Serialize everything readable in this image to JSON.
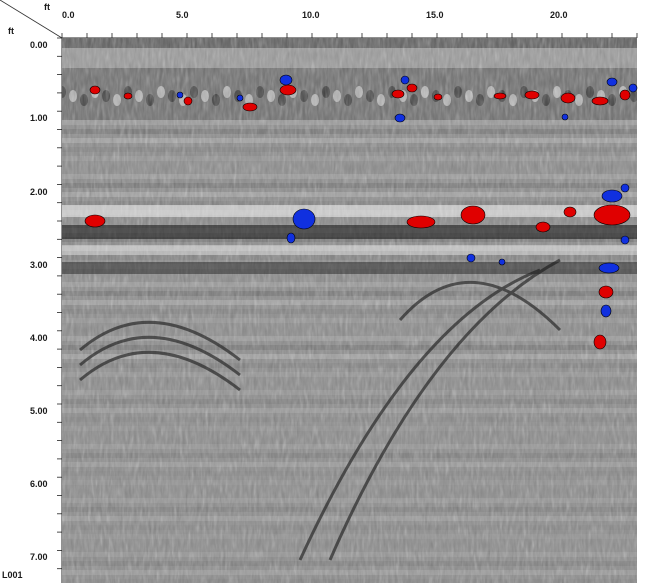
{
  "axes": {
    "x_unit": "ft",
    "y_unit": "ft",
    "x_ticks": [
      "0.0",
      "5.0",
      "10.0",
      "15.0",
      "20.0"
    ],
    "y_ticks": [
      "0.00",
      "1.00",
      "2.00",
      "3.00",
      "4.00",
      "5.00",
      "6.00",
      "7.00"
    ]
  },
  "line_label": "L001",
  "colors": {
    "positive_anomaly": "#e00000",
    "negative_anomaly": "#1030e0",
    "background_gray": "#8c8c8c"
  }
}
